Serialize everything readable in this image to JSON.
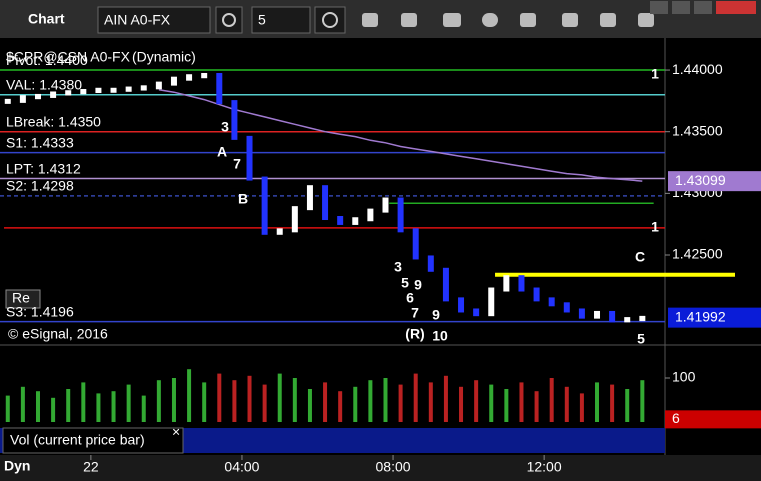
{
  "ui": {
    "app_title": "Chart",
    "symbol": "AIN A0-FX",
    "interval": "5",
    "study_title": "$CPR@CSN A0-FX",
    "study_mode": "(Dynamic)",
    "copyright": "© eSignal, 2016",
    "button": "Re",
    "vol_label": "Vol (current price bar)",
    "vol_close": "×",
    "bottom_label": "Dyn"
  },
  "chart_data": {
    "type": "candlestick",
    "x": [
      -2.2,
      -1.8,
      -1.4,
      -1.0,
      -0.6,
      -0.2,
      0.2,
      0.6,
      1.0,
      1.4,
      1.8,
      2.2,
      2.6,
      3.0,
      3.4,
      3.8,
      4.2,
      4.6,
      5.0,
      5.4,
      5.8,
      6.2,
      6.6,
      7.0,
      7.4,
      7.8,
      8.2,
      8.6,
      9.0,
      9.4,
      9.8,
      10.2,
      10.6,
      11.0,
      11.4,
      11.8,
      12.2,
      12.6,
      13.0,
      13.4,
      13.8,
      14.2,
      14.6
    ],
    "series": [
      {
        "color": "#2233ff",
        "values": [
          1.4375,
          1.4378,
          1.4379,
          1.4381,
          1.4382,
          1.4383,
          1.4384,
          1.4384,
          1.4385,
          1.4386,
          1.4389,
          1.4393,
          1.4395,
          1.4396,
          1.4374,
          1.4345,
          1.4312,
          1.4268,
          1.427,
          1.4288,
          1.4305,
          1.428,
          1.4276,
          1.4279,
          1.4286,
          1.4295,
          1.427,
          1.4248,
          1.4238,
          1.4214,
          1.4205,
          1.4202,
          1.4222,
          1.4232,
          1.4222,
          1.4214,
          1.421,
          1.4205,
          1.42,
          1.4203,
          1.4197,
          1.4198,
          1.4199
        ]
      },
      {
        "color": "#a07ad0",
        "values": [
          null,
          null,
          null,
          null,
          null,
          null,
          null,
          null,
          null,
          null,
          1.4384,
          1.4382,
          1.4379,
          1.4376,
          1.4372,
          1.4368,
          1.4365,
          1.4362,
          1.4359,
          1.4356,
          1.4353,
          1.435,
          1.4348,
          1.4346,
          1.4343,
          1.4341,
          1.4338,
          1.4336,
          1.4334,
          1.4332,
          1.433,
          1.4328,
          1.4326,
          1.4324,
          1.4322,
          1.432,
          1.4318,
          1.4316,
          1.4315,
          1.4313,
          1.4312,
          1.4311,
          1.43099
        ]
      }
    ],
    "volume": {
      "values": [
        60,
        80,
        70,
        55,
        75,
        90,
        65,
        70,
        85,
        60,
        95,
        100,
        120,
        90,
        110,
        95,
        105,
        85,
        110,
        100,
        75,
        90,
        70,
        80,
        95,
        100,
        85,
        110,
        90,
        105,
        80,
        95,
        85,
        75,
        90,
        70,
        100,
        80,
        65,
        90,
        85,
        75,
        95
      ],
      "ylim": [
        0,
        175
      ],
      "yticks": [
        100
      ],
      "tag": {
        "value": 6,
        "label": "6"
      }
    },
    "xlim": [
      -2.3,
      15.2
    ],
    "xticks": [
      {
        "value": 0,
        "label": "22"
      },
      {
        "value": 4,
        "label": "04:00"
      },
      {
        "value": 8,
        "label": "08:00"
      },
      {
        "value": 12,
        "label": "12:00"
      }
    ],
    "ylim": [
      1.4177,
      1.4426
    ],
    "yticks": [
      {
        "value": 1.44,
        "label": "1.44000"
      },
      {
        "value": 1.435,
        "label": "1.43500"
      },
      {
        "value": 1.43,
        "label": "1.43000"
      },
      {
        "value": 1.425,
        "label": "1.42500"
      }
    ],
    "tags": [
      {
        "value": 1.43099,
        "label": "1.43099",
        "color": "#a07ad0"
      },
      {
        "value": 1.41992,
        "label": "1.41992",
        "color": "#0a1cd8"
      }
    ],
    "levels": [
      {
        "label": "Pivot: 1.4400",
        "value": 1.44,
        "color": "#22bb22"
      },
      {
        "label": "VAL: 1.4380",
        "value": 1.438,
        "color": "#55cccc"
      },
      {
        "label": "LBreak: 1.4350",
        "value": 1.435,
        "color": "#dd2222"
      },
      {
        "label": "S1: 1.4333",
        "value": 1.4333,
        "color": "#3344cc"
      },
      {
        "label": "LPT: 1.4312",
        "value": 1.4312,
        "color": "#b090d0"
      },
      {
        "label": "S2: 1.4298",
        "value": 1.4298,
        "color": "#3344aa"
      },
      {
        "label": "S3: 1.4196",
        "value": 1.4196,
        "color": "#3344cc"
      }
    ],
    "lines": [
      {
        "value": 1.4272,
        "color": "#dd1111"
      },
      {
        "value": 1.4292,
        "color": "#22aa22"
      },
      {
        "value": 1.4234,
        "color": "#ffff00"
      }
    ],
    "annotations": [
      {
        "text": "A",
        "color": "#ffee44"
      },
      {
        "text": "B",
        "color": "#ffee44"
      },
      {
        "text": "C",
        "color": "#ffee44"
      },
      {
        "text": "1",
        "color": "#ee1111"
      },
      {
        "text": "1",
        "color": "#22bb22"
      },
      {
        "text": "(R)",
        "color": "#bb1111"
      },
      {
        "text": "3",
        "color": "#ff22ff"
      },
      {
        "text": "5",
        "color": "#ff22ff"
      },
      {
        "text": "6",
        "color": "#ff22ff"
      },
      {
        "text": "7",
        "color": "#ff22ff"
      },
      {
        "text": "9",
        "color": "#ff22ff"
      },
      {
        "text": "10",
        "color": "#ff22ff"
      },
      {
        "text": "9",
        "color": "#22aa22"
      },
      {
        "text": "3",
        "color": "#22aa22"
      },
      {
        "text": "7",
        "color": "#22aa22"
      },
      {
        "text": "5",
        "color": "#22aa22"
      }
    ]
  }
}
